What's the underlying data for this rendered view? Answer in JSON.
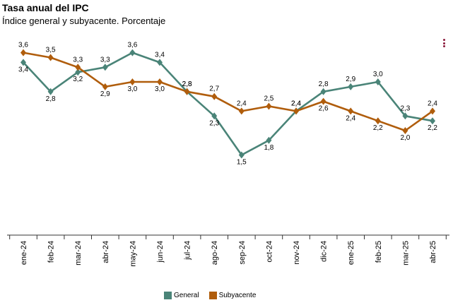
{
  "chart_data": {
    "type": "line",
    "title": "Tasa anual del IPC",
    "subtitle": "Índice general y subyacente. Porcentaje",
    "categories": [
      "ene-24",
      "feb-24",
      "mar-24",
      "abr-24",
      "may-24",
      "jun-24",
      "jul-24",
      "ago-24",
      "sep-24",
      "oct-24",
      "nov-24",
      "dic-24",
      "ene-25",
      "feb-25",
      "mar-25",
      "abr-25"
    ],
    "ylim": [
      0,
      4.0
    ],
    "series": [
      {
        "name": "General",
        "color": "#4a8478",
        "values": [
          3.4,
          2.8,
          3.2,
          3.3,
          3.6,
          3.4,
          2.8,
          2.3,
          1.5,
          1.8,
          2.4,
          2.8,
          2.9,
          3.0,
          2.3,
          2.2
        ],
        "labels": [
          "3,4",
          "2,8",
          "3,2",
          "3,3",
          "3,6",
          "3,4",
          "2,8",
          "2,3",
          "1,5",
          "1,8",
          "2,4",
          "2,8",
          "2,9",
          "3,0",
          "2,3",
          "2,2"
        ]
      },
      {
        "name": "Subyacente",
        "color": "#b05d0c",
        "values": [
          3.6,
          3.5,
          3.3,
          2.9,
          3.0,
          3.0,
          2.8,
          2.7,
          2.4,
          2.5,
          2.4,
          2.6,
          2.4,
          2.2,
          2.0,
          2.4
        ],
        "labels": [
          "3,6",
          "3,5",
          "3,3",
          "2,9",
          "3,0",
          "3,0",
          "2,8",
          "2,7",
          "2,4",
          "2,5",
          "2,4",
          "2,6",
          "2,4",
          "2,2",
          "2,0",
          "2,4"
        ]
      }
    ]
  },
  "legend": {
    "general": "General",
    "subyacente": "Subyacente"
  }
}
